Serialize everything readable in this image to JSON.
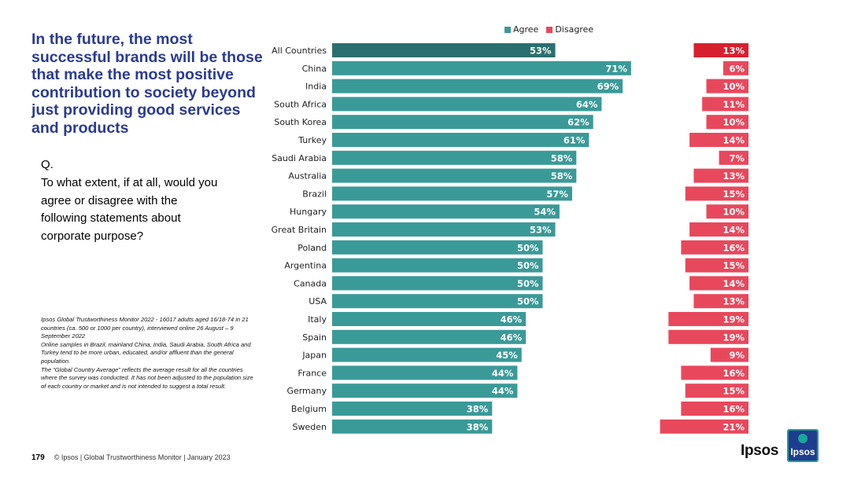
{
  "title": "In the future, the most successful brands will be those that make the most positive contribution to society beyond just providing good services and products",
  "question": {
    "label": "Q.",
    "text": "To what extent, if at all, would you agree or disagree with the following statements about corporate purpose?"
  },
  "notes": [
    "Ipsos Global Trustworthiness Monitor 2022 - 16017 adults aged 16/18-74 in 21 countries (ca. 500 or 1000 per country), interviewed online 26 August – 9 September 2022",
    "Online samples in Brazil, mainland China, India, Saudi Arabia, South Africa and Turkey tend to be more urban, educated, and/or affluent than the general population.",
    "The “Global Country Average” reflects the average result for all the countries where the survey was conducted. It has not been adjusted to the population size of each country or market and is not intended to suggest a total result."
  ],
  "footer": {
    "page_number": "179",
    "text": "© Ipsos | Global Trustworthiness Monitor | January 2023"
  },
  "logo": {
    "wordmark": "Ipsos",
    "badge_text": "Ipsos"
  },
  "colors": {
    "title": "#2b3a93",
    "agree": "#3a9a98",
    "agree_highlight": "#2b6f6e",
    "disagree": "#e8485c",
    "disagree_highlight": "#d6202f"
  },
  "chart_data": {
    "type": "bar",
    "orientation": "horizontal",
    "categories": [
      "All Countries",
      "China",
      "India",
      "South Africa",
      "South Korea",
      "Turkey",
      "Saudi Arabia",
      "Australia",
      "Brazil",
      "Hungary",
      "Great Britain",
      "Poland",
      "Argentina",
      "Canada",
      "USA",
      "Italy",
      "Spain",
      "Japan",
      "France",
      "Germany",
      "Belgium",
      "Sweden"
    ],
    "series": [
      {
        "name": "Agree",
        "values": [
          53,
          71,
          69,
          64,
          62,
          61,
          58,
          58,
          57,
          54,
          53,
          50,
          50,
          50,
          50,
          46,
          46,
          45,
          44,
          44,
          38,
          38
        ]
      },
      {
        "name": "Disagree",
        "values": [
          13,
          6,
          10,
          11,
          10,
          14,
          7,
          13,
          15,
          10,
          14,
          16,
          15,
          14,
          13,
          19,
          19,
          9,
          16,
          15,
          16,
          21
        ]
      }
    ],
    "value_suffix": "%",
    "legend_position": "top",
    "grid": false
  }
}
